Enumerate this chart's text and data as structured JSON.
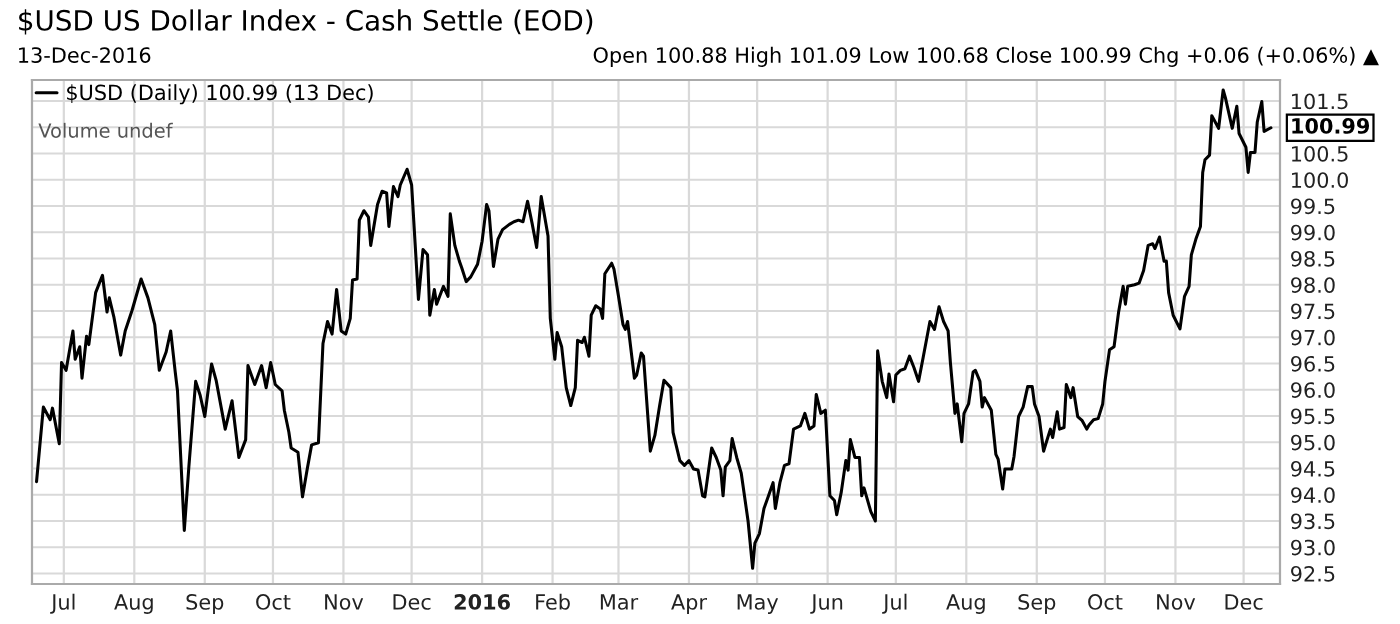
{
  "chart_data": {
    "type": "line",
    "title": "$USD US Dollar Index - Cash Settle (EOD)",
    "subtitle": "13-Dec-2016",
    "annotations": [
      "Open 100.88 High 101.09 Low 100.68 Close 100.99 Chg +0.06 (+0.06%) ▲",
      "Volume undef",
      {
        "text": "100.99",
        "x": "2016-12-13",
        "y": 100.99
      }
    ],
    "series": [
      {
        "name": "$USD (Daily) 100.99 (13 Dec)",
        "color": "#000000",
        "x": [
          "2015-06-19",
          "2015-06-22",
          "2015-06-25",
          "2015-06-26",
          "2015-06-29",
          "2015-06-30",
          "2015-07-02",
          "2015-07-05",
          "2015-07-06",
          "2015-07-08",
          "2015-07-09",
          "2015-07-11",
          "2015-07-12",
          "2015-07-15",
          "2015-07-18",
          "2015-07-20",
          "2015-07-21",
          "2015-07-23",
          "2015-07-26",
          "2015-07-28",
          "2015-07-31",
          "2015-08-04",
          "2015-08-07",
          "2015-08-10",
          "2015-08-12",
          "2015-08-15",
          "2015-08-17",
          "2015-08-19",
          "2015-08-20",
          "2015-08-23",
          "2015-08-25",
          "2015-08-28",
          "2015-08-30",
          "2015-09-01",
          "2015-09-04",
          "2015-09-06",
          "2015-09-10",
          "2015-09-13",
          "2015-09-16",
          "2015-09-19",
          "2015-09-20",
          "2015-09-23",
          "2015-09-26",
          "2015-09-28",
          "2015-09-30",
          "2015-10-02",
          "2015-10-05",
          "2015-10-06",
          "2015-10-08",
          "2015-10-09",
          "2015-10-12",
          "2015-10-14",
          "2015-10-16",
          "2015-10-18",
          "2015-10-21",
          "2015-10-23",
          "2015-10-25",
          "2015-10-27",
          "2015-10-29",
          "2015-10-31",
          "2015-11-02",
          "2015-11-04",
          "2015-11-05",
          "2015-11-07",
          "2015-11-08",
          "2015-11-10",
          "2015-11-12",
          "2015-11-13",
          "2015-11-16",
          "2015-11-18",
          "2015-11-20",
          "2015-11-21",
          "2015-11-23",
          "2015-11-25",
          "2015-11-26",
          "2015-11-29",
          "2015-12-01",
          "2015-12-04",
          "2015-12-06",
          "2015-12-08",
          "2015-12-09",
          "2015-12-11",
          "2015-12-12",
          "2015-12-15",
          "2015-12-17",
          "2015-12-18",
          "2015-12-20",
          "2015-12-22",
          "2015-12-23",
          "2015-12-25",
          "2015-12-27",
          "2015-12-30",
          "2016-01-01",
          "2016-01-03",
          "2016-01-04",
          "2016-01-06",
          "2016-01-08",
          "2016-01-10",
          "2016-01-13",
          "2016-01-15",
          "2016-01-17",
          "2016-01-19",
          "2016-01-21",
          "2016-01-23",
          "2016-01-25",
          "2016-01-27",
          "2016-01-30",
          "2016-01-31",
          "2016-02-02",
          "2016-02-03",
          "2016-02-05",
          "2016-02-07",
          "2016-02-09",
          "2016-02-11",
          "2016-02-12",
          "2016-02-14",
          "2016-02-15",
          "2016-02-17",
          "2016-02-18",
          "2016-02-20",
          "2016-02-22",
          "2016-02-23",
          "2016-02-24",
          "2016-02-27",
          "2016-02-28",
          "2016-03-01",
          "2016-03-03",
          "2016-03-04",
          "2016-03-05",
          "2016-03-08",
          "2016-03-09",
          "2016-03-11",
          "2016-03-12",
          "2016-03-15",
          "2016-03-17",
          "2016-03-19",
          "2016-03-21",
          "2016-03-24",
          "2016-03-25",
          "2016-03-28",
          "2016-03-30",
          "2016-04-01",
          "2016-04-03",
          "2016-04-05",
          "2016-04-07",
          "2016-04-08",
          "2016-04-11",
          "2016-04-13",
          "2016-04-15",
          "2016-04-16",
          "2016-04-17",
          "2016-04-19",
          "2016-04-20",
          "2016-04-22",
          "2016-04-24",
          "2016-04-27",
          "2016-04-29",
          "2016-04-30",
          "2016-05-02",
          "2016-05-04",
          "2016-05-06",
          "2016-05-08",
          "2016-05-09",
          "2016-05-11",
          "2016-05-13",
          "2016-05-15",
          "2016-05-17",
          "2016-05-20",
          "2016-05-22",
          "2016-05-24",
          "2016-05-26",
          "2016-05-27",
          "2016-05-29",
          "2016-05-31",
          "2016-06-02",
          "2016-06-04",
          "2016-06-05",
          "2016-06-07",
          "2016-06-09",
          "2016-06-10",
          "2016-06-11",
          "2016-06-13",
          "2016-06-15",
          "2016-06-16",
          "2016-06-17",
          "2016-06-20",
          "2016-06-22",
          "2016-06-23",
          "2016-06-25",
          "2016-06-27",
          "2016-06-28",
          "2016-06-30",
          "2016-07-01",
          "2016-07-03",
          "2016-07-05",
          "2016-07-07",
          "2016-07-09",
          "2016-07-11",
          "2016-07-13",
          "2016-07-16",
          "2016-07-18",
          "2016-07-20",
          "2016-07-22",
          "2016-07-24",
          "2016-07-25",
          "2016-07-27",
          "2016-07-28",
          "2016-07-30",
          "2016-07-31",
          "2016-08-02",
          "2016-08-04",
          "2016-08-05",
          "2016-08-07",
          "2016-08-08",
          "2016-08-09",
          "2016-08-12",
          "2016-08-14",
          "2016-08-15",
          "2016-08-17",
          "2016-08-18",
          "2016-08-21",
          "2016-08-22",
          "2016-08-24",
          "2016-08-26",
          "2016-08-28",
          "2016-08-30",
          "2016-08-31",
          "2016-09-02",
          "2016-09-04",
          "2016-09-05",
          "2016-09-07",
          "2016-09-08",
          "2016-09-10",
          "2016-09-11",
          "2016-09-13",
          "2016-09-14",
          "2016-09-16",
          "2016-09-17",
          "2016-09-19",
          "2016-09-21",
          "2016-09-23",
          "2016-09-24",
          "2016-09-26",
          "2016-09-28",
          "2016-09-30",
          "2016-10-01",
          "2016-10-03",
          "2016-10-05",
          "2016-10-07",
          "2016-10-09",
          "2016-10-10",
          "2016-10-11",
          "2016-10-14",
          "2016-10-16",
          "2016-10-18",
          "2016-10-20",
          "2016-10-22",
          "2016-10-23",
          "2016-10-25",
          "2016-10-27",
          "2016-10-28",
          "2016-10-29",
          "2016-10-31",
          "2016-11-03",
          "2016-11-05",
          "2016-11-07",
          "2016-11-08",
          "2016-11-10",
          "2016-11-12",
          "2016-11-13",
          "2016-11-14",
          "2016-11-16",
          "2016-11-17",
          "2016-11-20",
          "2016-11-22",
          "2016-11-23",
          "2016-11-26",
          "2016-11-28",
          "2016-11-29",
          "2016-12-02",
          "2016-12-03",
          "2016-12-04",
          "2016-12-06",
          "2016-12-07",
          "2016-12-09",
          "2016-12-10",
          "2016-12-13"
        ],
        "values": [
          94.25,
          95.67,
          95.43,
          95.65,
          94.97,
          96.52,
          96.37,
          97.12,
          96.58,
          96.82,
          96.22,
          97.02,
          96.86,
          97.85,
          98.18,
          97.48,
          97.75,
          97.39,
          96.66,
          97.12,
          97.51,
          98.11,
          97.75,
          97.24,
          96.37,
          96.72,
          97.12,
          96.34,
          95.98,
          93.32,
          94.53,
          96.16,
          95.89,
          95.49,
          96.49,
          96.18,
          95.25,
          95.79,
          94.71,
          95.05,
          96.46,
          96.1,
          96.46,
          96.04,
          96.52,
          96.1,
          95.98,
          95.61,
          95.19,
          94.89,
          94.81,
          93.96,
          94.47,
          94.95,
          94.99,
          96.88,
          97.3,
          97.06,
          97.91,
          97.12,
          97.06,
          97.36,
          98.09,
          98.11,
          99.23,
          99.41,
          99.29,
          98.75,
          99.53,
          99.78,
          99.75,
          99.11,
          99.87,
          99.68,
          99.9,
          100.2,
          99.9,
          97.72,
          98.67,
          98.57,
          97.42,
          97.91,
          97.63,
          97.97,
          97.78,
          99.35,
          98.75,
          98.45,
          98.33,
          98.06,
          98.15,
          98.39,
          98.83,
          99.53,
          99.41,
          98.35,
          98.87,
          99.05,
          99.15,
          99.2,
          99.23,
          99.2,
          99.59,
          99.17,
          98.71,
          99.68,
          98.93,
          97.36,
          96.58,
          97.09,
          96.82,
          96.04,
          95.7,
          96.04,
          96.94,
          96.9,
          97.0,
          96.64,
          97.42,
          97.6,
          97.54,
          97.36,
          98.21,
          98.41,
          98.3,
          97.78,
          97.24,
          97.15,
          97.3,
          96.22,
          96.28,
          96.7,
          96.64,
          94.83,
          95.13,
          95.67,
          96.18,
          96.04,
          95.19,
          94.65,
          94.56,
          94.65,
          94.49,
          94.47,
          93.98,
          93.96,
          94.89,
          94.71,
          94.47,
          93.98,
          94.53,
          94.65,
          95.07,
          94.71,
          94.41,
          93.5,
          92.6,
          93.08,
          93.26,
          93.74,
          93.98,
          94.23,
          93.74,
          94.23,
          94.56,
          94.59,
          95.25,
          95.31,
          95.55,
          95.25,
          95.31,
          95.91,
          95.55,
          95.61,
          93.98,
          93.89,
          93.62,
          94.05,
          94.65,
          94.47,
          95.05,
          94.71,
          94.71,
          93.98,
          94.13,
          93.68,
          93.5,
          96.74,
          96.16,
          95.85,
          96.3,
          95.77,
          96.28,
          96.37,
          96.4,
          96.64,
          96.42,
          96.16,
          96.61,
          97.3,
          97.15,
          97.58,
          97.3,
          97.12,
          96.52,
          95.55,
          95.73,
          95.01,
          95.55,
          95.73,
          96.34,
          96.37,
          96.16,
          95.67,
          95.85,
          95.61,
          94.77,
          94.68,
          94.11,
          94.49,
          94.49,
          94.73,
          95.49,
          95.67,
          96.06,
          96.06,
          95.73,
          95.49,
          94.83,
          94.97,
          95.25,
          95.09,
          95.58,
          95.25,
          95.28,
          96.1,
          95.85,
          96.04,
          95.49,
          95.41,
          95.25,
          95.33,
          95.43,
          95.45,
          95.73,
          96.16,
          96.76,
          96.82,
          97.48,
          97.97,
          97.63,
          97.97,
          98.0,
          98.03,
          98.27,
          98.75,
          98.78,
          98.69,
          98.91,
          98.45,
          98.45,
          97.85,
          97.42,
          97.16,
          97.78,
          97.97,
          98.57,
          98.87,
          99.11,
          100.14,
          100.38,
          100.47,
          101.22,
          100.98,
          101.71,
          101.56,
          100.98,
          101.4,
          100.88,
          100.62,
          100.14,
          100.52,
          100.52,
          101.1,
          101.49,
          100.92,
          100.99
        ]
      }
    ],
    "xlim": [
      "2015-06-17",
      "2016-12-17"
    ],
    "xticks": [
      {
        "value": "2015-07-01",
        "label": "Jul"
      },
      {
        "value": "2015-08-01",
        "label": "Aug"
      },
      {
        "value": "2015-09-01",
        "label": "Sep"
      },
      {
        "value": "2015-10-01",
        "label": "Oct"
      },
      {
        "value": "2015-11-01",
        "label": "Nov"
      },
      {
        "value": "2015-12-01",
        "label": "Dec"
      },
      {
        "value": "2016-01-01",
        "label": "2016"
      },
      {
        "value": "2016-02-01",
        "label": "Feb"
      },
      {
        "value": "2016-03-01",
        "label": "Mar"
      },
      {
        "value": "2016-04-01",
        "label": "Apr"
      },
      {
        "value": "2016-05-01",
        "label": "May"
      },
      {
        "value": "2016-06-01",
        "label": "Jun"
      },
      {
        "value": "2016-07-01",
        "label": "Jul"
      },
      {
        "value": "2016-08-01",
        "label": "Aug"
      },
      {
        "value": "2016-09-01",
        "label": "Sep"
      },
      {
        "value": "2016-10-01",
        "label": "Oct"
      },
      {
        "value": "2016-11-01",
        "label": "Nov"
      },
      {
        "value": "2016-12-01",
        "label": "Dec"
      }
    ],
    "ylim": [
      92.3,
      101.9
    ],
    "yticks": [
      {
        "value": 92.5,
        "label": "92.5"
      },
      {
        "value": 93,
        "label": "93.0"
      },
      {
        "value": 93.5,
        "label": "93.5"
      },
      {
        "value": 94,
        "label": "94.0"
      },
      {
        "value": 94.5,
        "label": "94.5"
      },
      {
        "value": 95,
        "label": "95.0"
      },
      {
        "value": 95.5,
        "label": "95.5"
      },
      {
        "value": 96,
        "label": "96.0"
      },
      {
        "value": 96.5,
        "label": "96.5"
      },
      {
        "value": 97,
        "label": "97.0"
      },
      {
        "value": 97.5,
        "label": "97.5"
      },
      {
        "value": 98,
        "label": "98.0"
      },
      {
        "value": 98.5,
        "label": "98.5"
      },
      {
        "value": 99,
        "label": "99.0"
      },
      {
        "value": 99.5,
        "label": "99.5"
      },
      {
        "value": 100,
        "label": "100.0"
      },
      {
        "value": 100.5,
        "label": "100.5"
      },
      {
        "value": 101,
        "label": null
      },
      {
        "value": 101.5,
        "label": "101.5"
      }
    ],
    "grid": true,
    "legend": "top left",
    "marker": "none",
    "line_style": "solid"
  }
}
